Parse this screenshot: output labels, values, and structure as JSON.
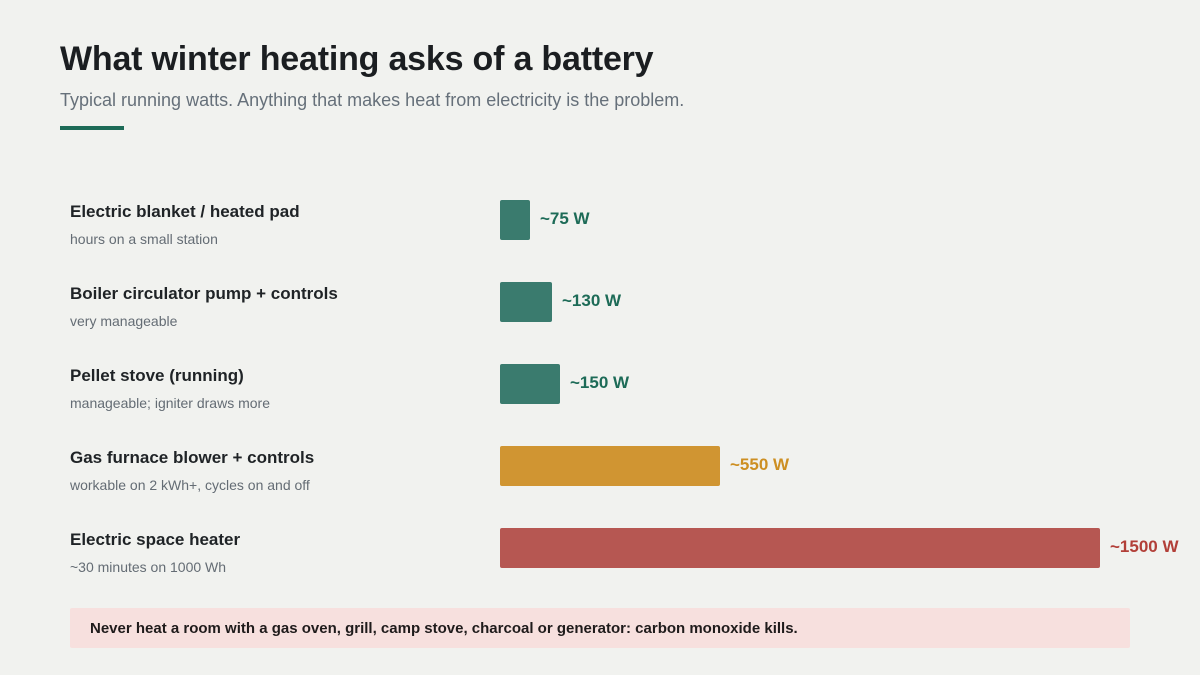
{
  "header": {
    "title": "What winter heating asks of a battery",
    "subtitle": "Typical running watts. Anything that makes heat from electricity is the problem."
  },
  "colors": {
    "low": "#3a7b6e",
    "low_text": "#1d6b57",
    "mid": "#d09532",
    "mid_text": "#cd8f22",
    "high": "#b65752",
    "high_text": "#b23f38",
    "accent": "#1d6b57"
  },
  "chart_data": {
    "type": "bar",
    "orientation": "horizontal",
    "unit": "W",
    "xlim": [
      0,
      1500
    ],
    "categories": [
      "Electric blanket / heated pad",
      "Boiler circulator pump + controls",
      "Pellet stove (running)",
      "Gas furnace blower + controls",
      "Electric space heater"
    ],
    "values": [
      75,
      130,
      150,
      550,
      1500
    ],
    "notes": [
      "hours on a small station",
      "very manageable",
      "manageable; igniter draws more",
      "workable on 2 kWh+, cycles on and off",
      "~30 minutes on 1000 Wh"
    ],
    "value_labels": [
      "~75 W",
      "~130 W",
      "~150 W",
      "~550 W",
      "~1500 W"
    ],
    "levels": [
      "low",
      "low",
      "low",
      "mid",
      "high"
    ]
  },
  "warning": {
    "text": "Never heat a room with a gas oven, grill, camp stove, charcoal or generator: carbon monoxide kills."
  }
}
